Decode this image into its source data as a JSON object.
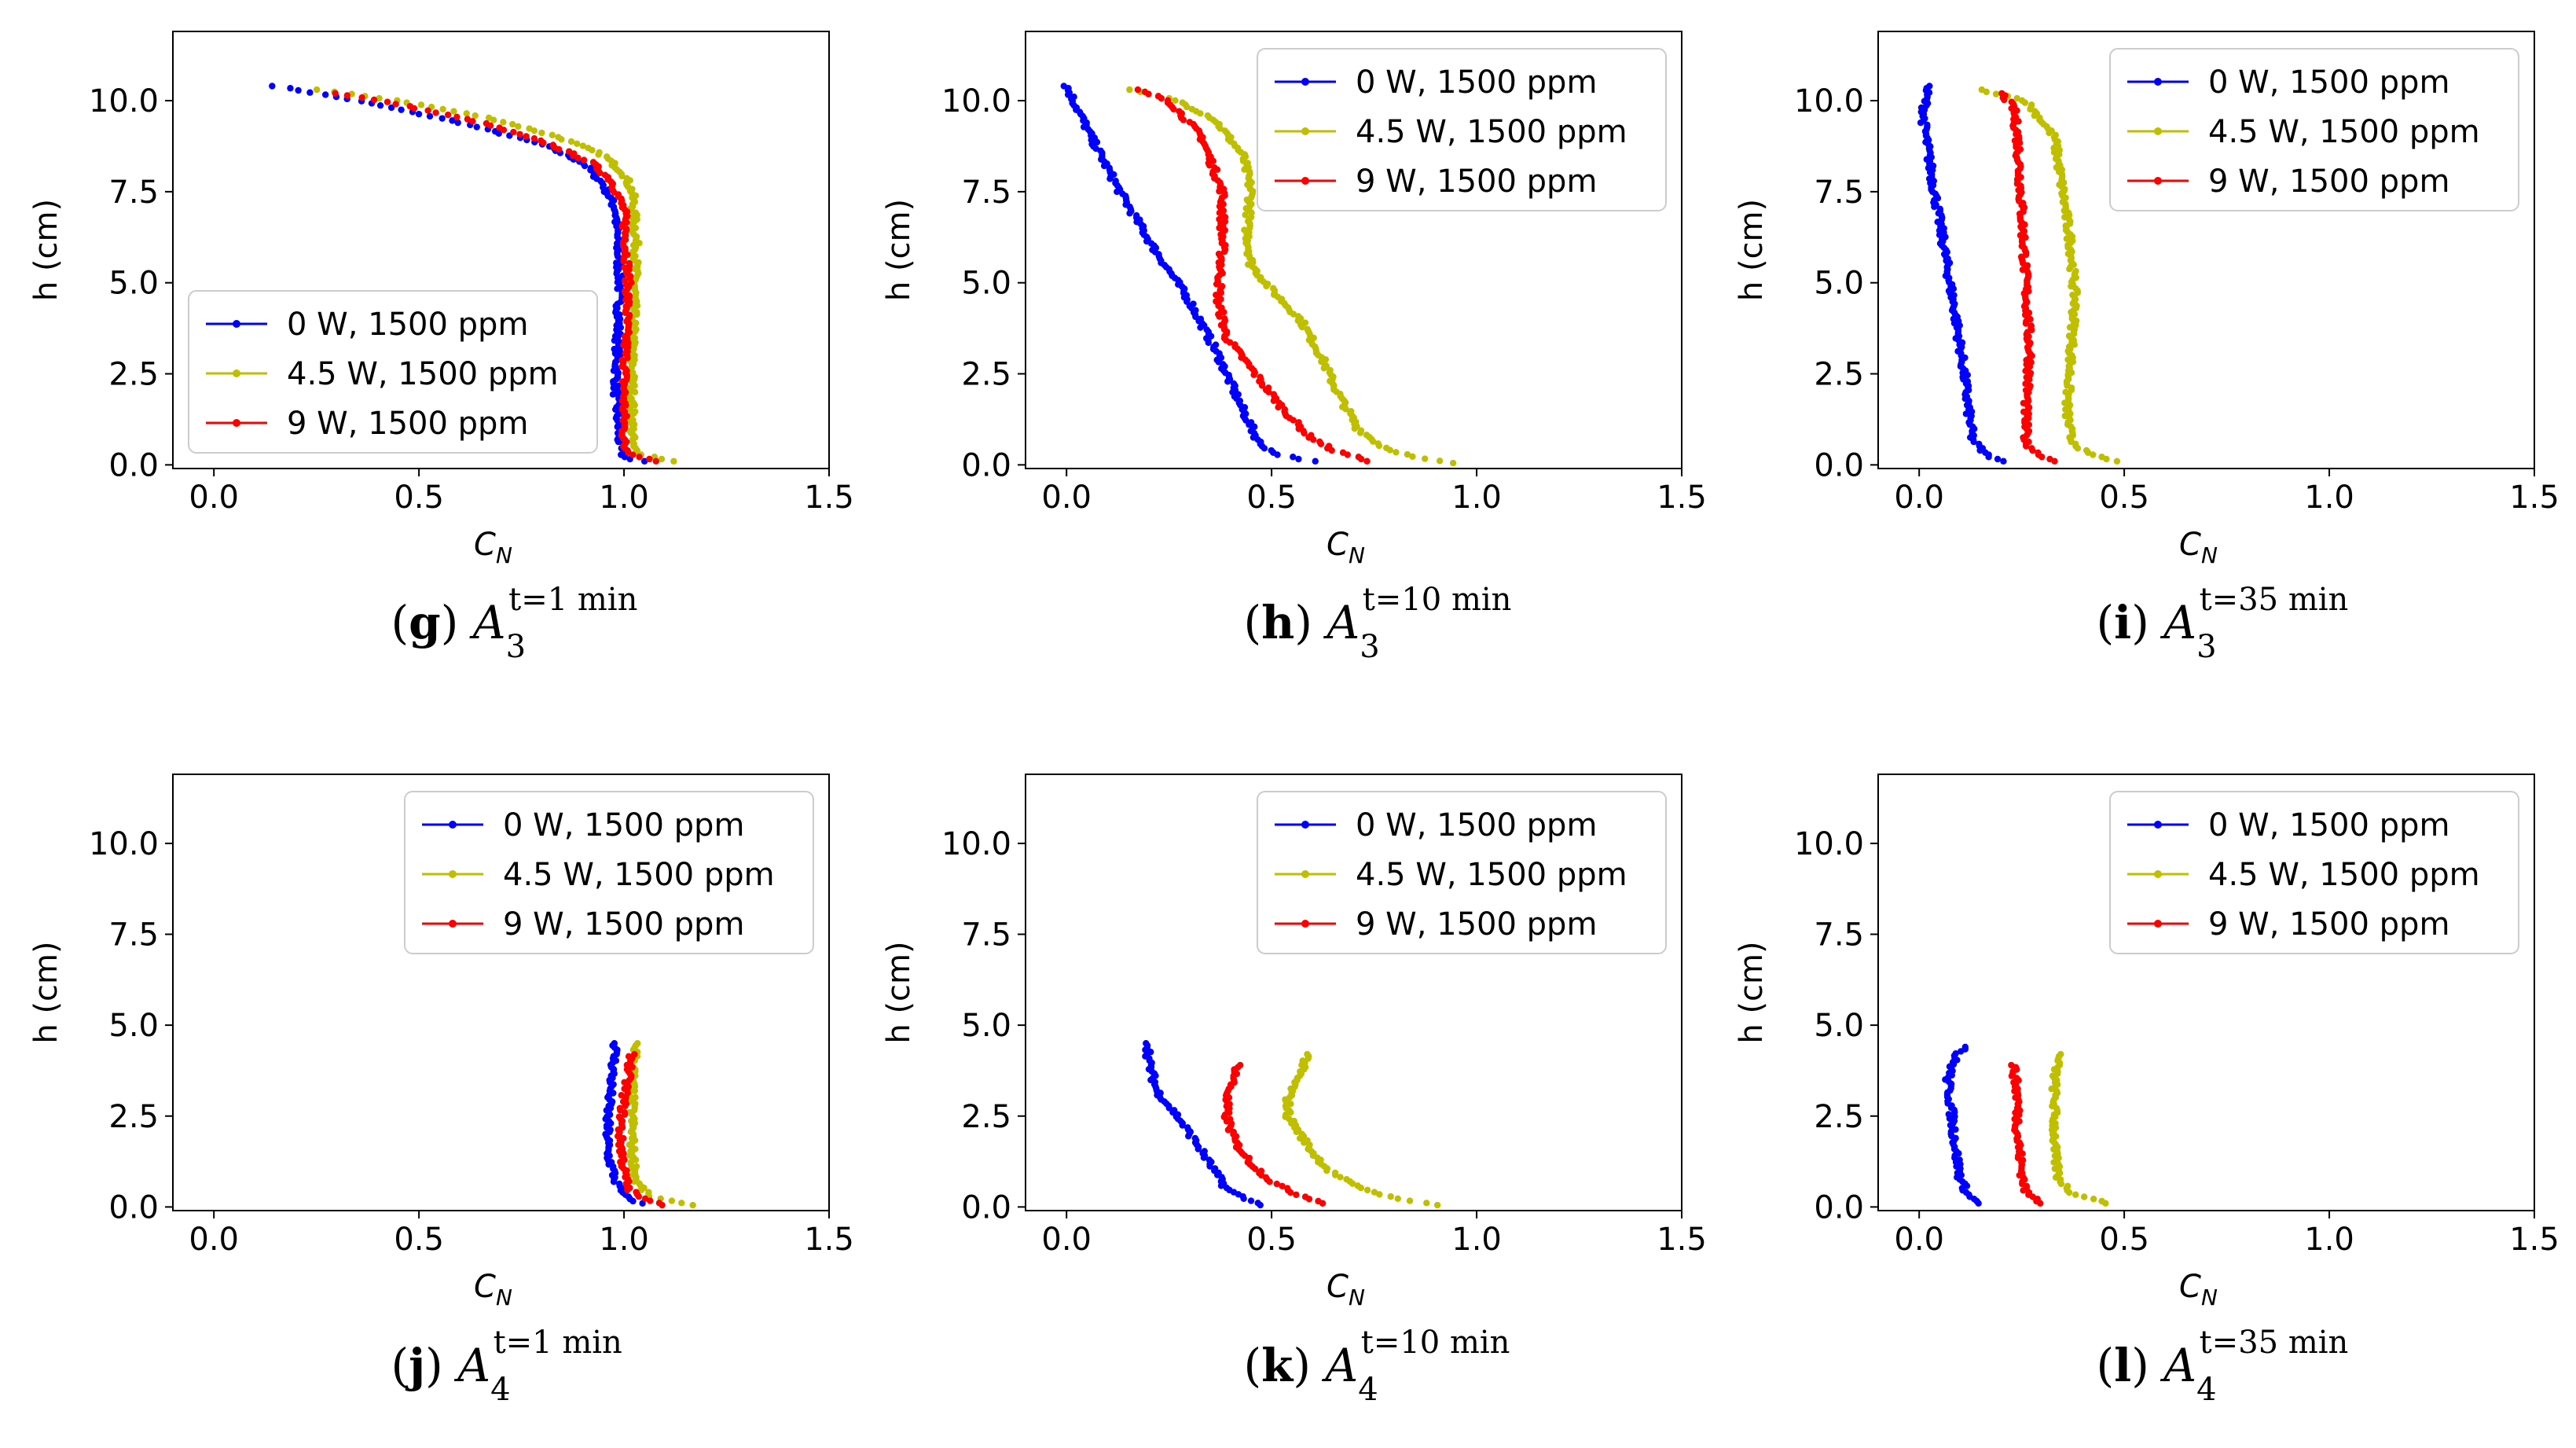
{
  "figure": {
    "title": ""
  },
  "colors": {
    "s0": "#0000ff",
    "s1": "#bfbf00",
    "s2": "#ff0000"
  },
  "chart_data": [
    {
      "type": "scatter",
      "letter": "g",
      "subscript": "3",
      "time": "t=1 min",
      "xlabel": "C",
      "xlabel_sub": "N",
      "ylabel": "h (cm)",
      "xlim": [
        -0.1,
        1.5
      ],
      "ylim": [
        -0.1,
        11.9
      ],
      "xticks": [
        "0.0",
        "0.5",
        "1.0",
        "1.5"
      ],
      "yticks": [
        "0.0",
        "2.5",
        "5.0",
        "7.5",
        "10.0"
      ],
      "legend_position": "lower-left",
      "series": [
        {
          "name": "0 W, 1500 ppm",
          "profile": [
            [
              10.4,
              0.15
            ],
            [
              10.0,
              0.35
            ],
            [
              9.4,
              0.6
            ],
            [
              8.8,
              0.8
            ],
            [
              8.3,
              0.9
            ],
            [
              7.7,
              0.95
            ],
            [
              7.0,
              0.98
            ],
            [
              5.0,
              0.99
            ],
            [
              2.0,
              0.98
            ],
            [
              0.5,
              0.99
            ],
            [
              0.2,
              1.0
            ],
            [
              0.1,
              1.05
            ]
          ]
        },
        {
          "name": "4.5 W, 1500 ppm",
          "profile": [
            [
              10.3,
              0.25
            ],
            [
              10.0,
              0.45
            ],
            [
              9.5,
              0.68
            ],
            [
              9.0,
              0.84
            ],
            [
              8.5,
              0.95
            ],
            [
              8.0,
              1.0
            ],
            [
              7.5,
              1.02
            ],
            [
              6.0,
              1.03
            ],
            [
              3.0,
              1.02
            ],
            [
              0.5,
              1.02
            ],
            [
              0.3,
              1.04
            ],
            [
              0.1,
              1.12
            ]
          ]
        },
        {
          "name": "9 W, 1500 ppm",
          "profile": [
            [
              10.2,
              0.3
            ],
            [
              9.9,
              0.45
            ],
            [
              9.4,
              0.65
            ],
            [
              8.8,
              0.82
            ],
            [
              8.3,
              0.92
            ],
            [
              7.8,
              0.97
            ],
            [
              7.0,
              1.0
            ],
            [
              5.0,
              1.01
            ],
            [
              2.0,
              1.0
            ],
            [
              0.5,
              1.0
            ],
            [
              0.3,
              1.02
            ],
            [
              0.1,
              1.08
            ]
          ]
        }
      ]
    },
    {
      "type": "scatter",
      "letter": "h",
      "subscript": "3",
      "time": "t=10 min",
      "xlabel": "C",
      "xlabel_sub": "N",
      "ylabel": "h (cm)",
      "xlim": [
        -0.1,
        1.5
      ],
      "ylim": [
        -0.1,
        11.9
      ],
      "xticks": [
        "0.0",
        "0.5",
        "1.0",
        "1.5"
      ],
      "yticks": [
        "0.0",
        "2.5",
        "5.0",
        "7.5",
        "10.0"
      ],
      "legend_position": "upper-right",
      "series": [
        {
          "name": "0 W, 1500 ppm",
          "profile": [
            [
              10.4,
              0.0
            ],
            [
              9.0,
              0.06
            ],
            [
              7.5,
              0.13
            ],
            [
              6.0,
              0.21
            ],
            [
              4.5,
              0.3
            ],
            [
              3.0,
              0.37
            ],
            [
              1.5,
              0.43
            ],
            [
              0.6,
              0.47
            ],
            [
              0.3,
              0.51
            ],
            [
              0.1,
              0.6
            ]
          ]
        },
        {
          "name": "4.5 W, 1500 ppm",
          "profile": [
            [
              10.3,
              0.15
            ],
            [
              10.0,
              0.27
            ],
            [
              9.5,
              0.36
            ],
            [
              8.5,
              0.43
            ],
            [
              7.5,
              0.45
            ],
            [
              6.5,
              0.44
            ],
            [
              5.5,
              0.45
            ],
            [
              4.8,
              0.5
            ],
            [
              4.0,
              0.57
            ],
            [
              3.0,
              0.62
            ],
            [
              2.0,
              0.66
            ],
            [
              1.0,
              0.71
            ],
            [
              0.5,
              0.77
            ],
            [
              0.2,
              0.85
            ],
            [
              0.05,
              0.94
            ]
          ]
        },
        {
          "name": "9 W, 1500 ppm",
          "profile": [
            [
              10.3,
              0.17
            ],
            [
              10.0,
              0.25
            ],
            [
              9.0,
              0.33
            ],
            [
              7.5,
              0.38
            ],
            [
              6.0,
              0.38
            ],
            [
              4.5,
              0.37
            ],
            [
              3.5,
              0.39
            ],
            [
              2.5,
              0.46
            ],
            [
              1.5,
              0.53
            ],
            [
              0.8,
              0.59
            ],
            [
              0.4,
              0.65
            ],
            [
              0.1,
              0.74
            ]
          ]
        }
      ]
    },
    {
      "type": "scatter",
      "letter": "i",
      "subscript": "3",
      "time": "t=35 min",
      "xlabel": "C",
      "xlabel_sub": "N",
      "ylabel": "h (cm)",
      "xlim": [
        -0.1,
        1.5
      ],
      "ylim": [
        -0.1,
        11.9
      ],
      "xticks": [
        "0.0",
        "0.5",
        "1.0",
        "1.5"
      ],
      "yticks": [
        "0.0",
        "2.5",
        "5.0",
        "7.5",
        "10.0"
      ],
      "legend_position": "upper-right",
      "series": [
        {
          "name": "0 W, 1500 ppm",
          "profile": [
            [
              10.4,
              0.02
            ],
            [
              9.5,
              0.01
            ],
            [
              8.0,
              0.03
            ],
            [
              6.0,
              0.06
            ],
            [
              4.0,
              0.09
            ],
            [
              2.5,
              0.11
            ],
            [
              1.5,
              0.12
            ],
            [
              0.7,
              0.13
            ],
            [
              0.3,
              0.16
            ],
            [
              0.1,
              0.2
            ]
          ]
        },
        {
          "name": "4.5 W, 1500 ppm",
          "profile": [
            [
              10.3,
              0.15
            ],
            [
              10.0,
              0.26
            ],
            [
              9.0,
              0.33
            ],
            [
              7.5,
              0.35
            ],
            [
              6.0,
              0.37
            ],
            [
              4.5,
              0.38
            ],
            [
              3.0,
              0.37
            ],
            [
              1.5,
              0.36
            ],
            [
              0.7,
              0.37
            ],
            [
              0.3,
              0.41
            ],
            [
              0.1,
              0.48
            ]
          ]
        },
        {
          "name": "9 W, 1500 ppm",
          "profile": [
            [
              10.2,
              0.2
            ],
            [
              9.8,
              0.23
            ],
            [
              9.0,
              0.24
            ],
            [
              7.0,
              0.25
            ],
            [
              5.0,
              0.26
            ],
            [
              3.0,
              0.27
            ],
            [
              1.5,
              0.26
            ],
            [
              0.6,
              0.26
            ],
            [
              0.3,
              0.29
            ],
            [
              0.1,
              0.33
            ]
          ]
        }
      ]
    },
    {
      "type": "scatter",
      "letter": "j",
      "subscript": "4",
      "time": "t=1 min",
      "xlabel": "C",
      "xlabel_sub": "N",
      "ylabel": "h (cm)",
      "xlim": [
        -0.1,
        1.5
      ],
      "ylim": [
        -0.1,
        11.9
      ],
      "xticks": [
        "0.0",
        "0.5",
        "1.0",
        "1.5"
      ],
      "yticks": [
        "0.0",
        "2.5",
        "5.0",
        "7.5",
        "10.0"
      ],
      "legend_position": "upper-right",
      "series": [
        {
          "name": "0 W, 1500 ppm",
          "profile": [
            [
              4.5,
              0.98
            ],
            [
              3.5,
              0.97
            ],
            [
              2.5,
              0.96
            ],
            [
              1.5,
              0.96
            ],
            [
              0.7,
              0.98
            ],
            [
              0.3,
              1.0
            ],
            [
              0.1,
              1.04
            ]
          ]
        },
        {
          "name": "4.5 W, 1500 ppm",
          "profile": [
            [
              4.5,
              1.03
            ],
            [
              3.5,
              1.02
            ],
            [
              2.5,
              1.02
            ],
            [
              1.5,
              1.02
            ],
            [
              0.7,
              1.03
            ],
            [
              0.3,
              1.06
            ],
            [
              0.05,
              1.16
            ]
          ]
        },
        {
          "name": "9 W, 1500 ppm",
          "profile": [
            [
              4.2,
              1.02
            ],
            [
              3.0,
              1.0
            ],
            [
              2.0,
              0.99
            ],
            [
              1.0,
              1.0
            ],
            [
              0.5,
              1.01
            ],
            [
              0.2,
              1.05
            ],
            [
              0.05,
              1.1
            ]
          ]
        }
      ]
    },
    {
      "type": "scatter",
      "letter": "k",
      "subscript": "4",
      "time": "t=10 min",
      "xlabel": "C",
      "xlabel_sub": "N",
      "ylabel": "h (cm)",
      "xlim": [
        -0.1,
        1.5
      ],
      "ylim": [
        -0.1,
        11.9
      ],
      "xticks": [
        "0.0",
        "0.5",
        "1.0",
        "1.5"
      ],
      "yticks": [
        "0.0",
        "2.5",
        "5.0",
        "7.5",
        "10.0"
      ],
      "legend_position": "upper-right",
      "series": [
        {
          "name": "0 W, 1500 ppm",
          "profile": [
            [
              4.5,
              0.2
            ],
            [
              4.0,
              0.2
            ],
            [
              3.2,
              0.22
            ],
            [
              2.5,
              0.27
            ],
            [
              1.7,
              0.32
            ],
            [
              1.0,
              0.36
            ],
            [
              0.5,
              0.39
            ],
            [
              0.2,
              0.44
            ],
            [
              0.05,
              0.48
            ]
          ]
        },
        {
          "name": "4.5 W, 1500 ppm",
          "profile": [
            [
              4.2,
              0.59
            ],
            [
              3.5,
              0.56
            ],
            [
              3.0,
              0.54
            ],
            [
              2.5,
              0.54
            ],
            [
              2.0,
              0.57
            ],
            [
              1.5,
              0.6
            ],
            [
              1.0,
              0.64
            ],
            [
              0.6,
              0.7
            ],
            [
              0.3,
              0.78
            ],
            [
              0.05,
              0.9
            ]
          ]
        },
        {
          "name": "9 W, 1500 ppm",
          "profile": [
            [
              3.9,
              0.42
            ],
            [
              3.0,
              0.39
            ],
            [
              2.5,
              0.39
            ],
            [
              1.8,
              0.41
            ],
            [
              1.2,
              0.45
            ],
            [
              0.7,
              0.5
            ],
            [
              0.4,
              0.55
            ],
            [
              0.1,
              0.63
            ]
          ]
        }
      ]
    },
    {
      "type": "scatter",
      "letter": "l",
      "subscript": "4",
      "time": "t=35 min",
      "xlabel": "C",
      "xlabel_sub": "N",
      "ylabel": "h (cm)",
      "xlim": [
        -0.1,
        1.5
      ],
      "ylim": [
        -0.1,
        11.9
      ],
      "xticks": [
        "0.0",
        "0.5",
        "1.0",
        "1.5"
      ],
      "yticks": [
        "0.0",
        "2.5",
        "5.0",
        "7.5",
        "10.0"
      ],
      "legend_position": "upper-right",
      "series": [
        {
          "name": "0 W, 1500 ppm",
          "profile": [
            [
              4.4,
              0.12
            ],
            [
              4.2,
              0.09
            ],
            [
              3.5,
              0.07
            ],
            [
              2.5,
              0.08
            ],
            [
              1.5,
              0.09
            ],
            [
              0.8,
              0.1
            ],
            [
              0.3,
              0.12
            ],
            [
              0.1,
              0.15
            ]
          ]
        },
        {
          "name": "4.5 W, 1500 ppm",
          "profile": [
            [
              4.2,
              0.34
            ],
            [
              3.5,
              0.33
            ],
            [
              2.5,
              0.33
            ],
            [
              1.5,
              0.33
            ],
            [
              0.8,
              0.34
            ],
            [
              0.4,
              0.37
            ],
            [
              0.1,
              0.46
            ]
          ]
        },
        {
          "name": "9 W, 1500 ppm",
          "profile": [
            [
              3.9,
              0.23
            ],
            [
              3.0,
              0.24
            ],
            [
              2.0,
              0.24
            ],
            [
              1.0,
              0.25
            ],
            [
              0.4,
              0.26
            ],
            [
              0.1,
              0.3
            ]
          ]
        }
      ]
    }
  ]
}
